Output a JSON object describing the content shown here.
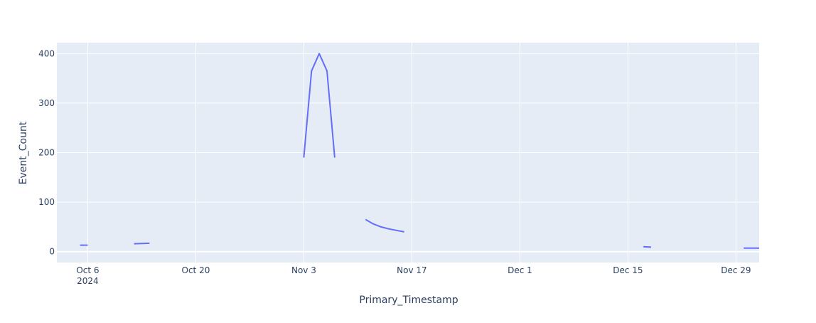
{
  "chart_data": {
    "type": "line",
    "title": "",
    "xlabel": "Primary_Timestamp",
    "ylabel": "Event_Count",
    "x_axis_type": "date",
    "xlim": [
      "2024-10-02",
      "2025-01-01"
    ],
    "ylim": [
      -22,
      422
    ],
    "x_ticks": [
      {
        "date": "2024-10-06",
        "label": "Oct 6",
        "sublabel": "2024"
      },
      {
        "date": "2024-10-20",
        "label": "Oct 20",
        "sublabel": ""
      },
      {
        "date": "2024-11-03",
        "label": "Nov 3",
        "sublabel": ""
      },
      {
        "date": "2024-11-17",
        "label": "Nov 17",
        "sublabel": ""
      },
      {
        "date": "2024-12-01",
        "label": "Dec 1",
        "sublabel": ""
      },
      {
        "date": "2024-12-15",
        "label": "Dec 15",
        "sublabel": ""
      },
      {
        "date": "2024-12-29",
        "label": "Dec 29",
        "sublabel": ""
      }
    ],
    "y_ticks": [
      0,
      100,
      200,
      300,
      400
    ],
    "grid": true,
    "line_color": "#636efa",
    "plot_bg": "#e5ecf6",
    "series": [
      {
        "segments": [
          [
            [
              "2024-10-05",
              13
            ],
            [
              "2024-10-06",
              13
            ]
          ],
          [
            [
              "2024-10-12",
              16
            ],
            [
              "2024-10-14",
              17
            ]
          ],
          [
            [
              "2024-11-03",
              190
            ],
            [
              "2024-11-04",
              365
            ],
            [
              "2024-11-05",
              400
            ],
            [
              "2024-11-06",
              365
            ],
            [
              "2024-11-07",
              190
            ]
          ],
          [
            [
              "2024-11-11",
              65
            ],
            [
              "2024-11-12",
              56
            ],
            [
              "2024-11-13",
              50
            ],
            [
              "2024-11-14",
              46
            ],
            [
              "2024-11-15",
              43
            ],
            [
              "2024-11-16",
              40
            ]
          ],
          [
            [
              "2024-12-17",
              10
            ],
            [
              "2024-12-18",
              9
            ]
          ],
          [
            [
              "2024-12-30",
              7
            ],
            [
              "2024-12-31",
              7
            ],
            [
              "2025-01-01",
              7
            ]
          ]
        ]
      }
    ]
  }
}
